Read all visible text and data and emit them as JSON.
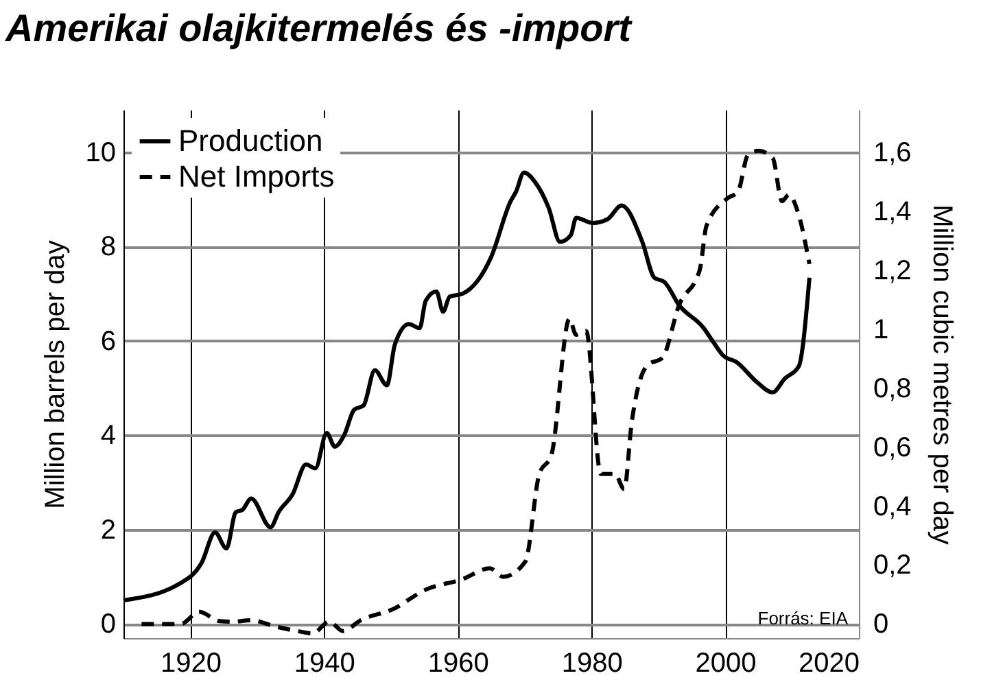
{
  "chart_data": {
    "type": "line",
    "title": "Amerikai olajkitermelés és -import",
    "ylabel": "Million barrels per day",
    "y2label": "Million cubic metres per day",
    "annotations": [
      "Forrás: EIA"
    ],
    "xlim": [
      1910,
      2020
    ],
    "xticks": [
      1920,
      1940,
      1960,
      1980,
      2000,
      2020
    ],
    "ylim": [
      -0.3,
      10.9
    ],
    "yticks": [
      0,
      2,
      4,
      6,
      8,
      10
    ],
    "y2lim": [
      -0.048,
      1.744
    ],
    "y2ticks": [
      0,
      {
        "value": 0.2,
        "label": "0,2"
      },
      {
        "value": 0.4,
        "label": "0,4"
      },
      {
        "value": 0.6,
        "label": "0,6"
      },
      {
        "value": 0.8,
        "label": "0,8"
      },
      1,
      {
        "value": 1.2,
        "label": "1,2"
      },
      {
        "value": 1.4,
        "label": "1,4"
      },
      {
        "value": 1.6,
        "label": "1,6"
      }
    ],
    "grid": true,
    "legend": "top left",
    "series": [
      {
        "name": "Production",
        "color": "#000000",
        "line_style": "solid",
        "x": [
          1910,
          1918.2,
          1921.7,
          1923.7,
          1925.4,
          1926.8,
          1927.8,
          1929.1,
          1932,
          1933.2,
          1935.3,
          1937.3,
          1938.7,
          1940.4,
          1941.6,
          1943,
          1944.5,
          1945.9,
          1947.6,
          1949.4,
          1950.6,
          1952.7,
          1954.3,
          1955.2,
          1956.8,
          1957.8,
          1958.8,
          1960.7,
          1965,
          1967.9,
          1968.7,
          1969.9,
          1971.6,
          1973.6,
          1975.3,
          1976.9,
          1977.7,
          1980.2,
          1982.4,
          1984.5,
          1987.6,
          1989.4,
          1990.9,
          1993.1,
          1996.8,
          1998.2,
          1999.7,
          2001.7,
          2004.8,
          2007.1,
          2008.9,
          2011,
          2012.6
        ],
        "values": [
          0.5,
          0.84,
          1.3,
          1.94,
          1.6,
          2.37,
          2.42,
          2.66,
          2.05,
          2.37,
          2.75,
          3.38,
          3.3,
          4.05,
          3.76,
          4.0,
          4.54,
          4.63,
          5.38,
          5.06,
          5.93,
          6.36,
          6.27,
          6.85,
          7.05,
          6.62,
          6.94,
          7.0,
          7.78,
          8.96,
          9.16,
          9.57,
          9.36,
          8.82,
          8.1,
          8.24,
          8.61,
          8.5,
          8.58,
          8.87,
          8.1,
          7.34,
          7.25,
          6.76,
          6.27,
          5.98,
          5.69,
          5.55,
          5.12,
          4.91,
          5.2,
          5.46,
          7.34
        ]
      },
      {
        "name": "Net Imports",
        "color": "#000000",
        "line_style": "dashed",
        "x": [
          1912.7,
          1918.6,
          1921.3,
          1924.4,
          1926.4,
          1929.1,
          1932.6,
          1936,
          1938.3,
          1940.8,
          1942.8,
          1945.5,
          1950.4,
          1955.1,
          1960.7,
          1964.8,
          1966.8,
          1970.1,
          1972.2,
          1974,
          1976.7,
          1977.7,
          1979.2,
          1981.4,
          1983.5,
          1984.9,
          1986,
          1988.4,
          1990.6,
          1993.1,
          1996.2,
          1997.2,
          2000.3,
          2001.9,
          2003.4,
          2005,
          2007.1,
          2008.5,
          2009.5,
          2011,
          2012.6
        ],
        "values": [
          0,
          0,
          0.26,
          0.06,
          0.05,
          0.08,
          -0.05,
          -0.15,
          -0.2,
          0.05,
          -0.15,
          0.08,
          0.32,
          0.72,
          0.95,
          1.18,
          1.0,
          1.32,
          3.18,
          3.58,
          6.47,
          6.13,
          6.21,
          3.18,
          3.18,
          2.86,
          4.25,
          5.49,
          5.64,
          6.76,
          7.51,
          8.44,
          9.02,
          9.16,
          9.94,
          10.03,
          9.88,
          8.96,
          9.1,
          8.67,
          7.63
        ]
      }
    ]
  }
}
